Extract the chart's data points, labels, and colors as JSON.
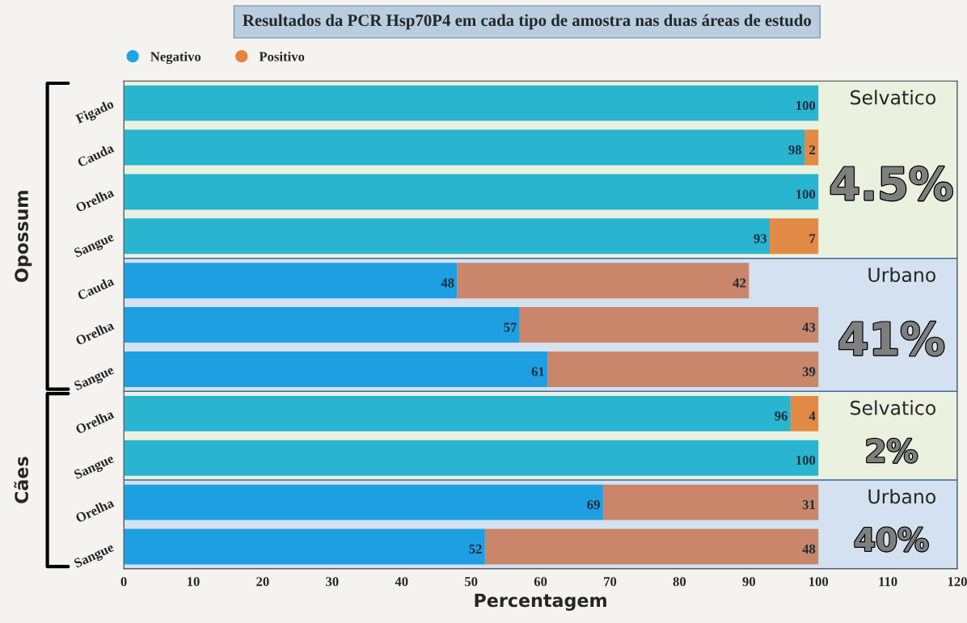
{
  "chart_data": {
    "type": "bar",
    "orientation": "horizontal",
    "stacked": true,
    "title": "Resultados da PCR Hsp70P4 em cada tipo de amostra nas duas áreas de estudo",
    "xlabel": "Percentagem",
    "categories": [
      "Figado",
      "Cauda",
      "Orelha",
      "Sangue",
      "Cauda",
      "Orelha",
      "Sangue",
      "Orelha",
      "Sangue",
      "Orelha",
      "Sangue"
    ],
    "series": [
      {
        "name": "Negativo",
        "color": "#1ea5e3",
        "colors": [
          "#29b4cf",
          "#29b4cf",
          "#29b4cf",
          "#29b4cf",
          "#1e9fe2",
          "#1e9fe2",
          "#1e9fe2",
          "#29b4cf",
          "#29b4cf",
          "#1e9fe2",
          "#1e9fe2"
        ],
        "values": [
          100,
          98,
          100,
          93,
          48,
          57,
          61,
          96,
          100,
          69,
          52
        ],
        "value_labels": [
          "100",
          "98",
          "100",
          "93",
          "48",
          "57",
          "61",
          "96",
          "100",
          "69",
          "52"
        ]
      },
      {
        "name": "Positivo",
        "color": "#e8823f",
        "colors": [
          "#e28a45",
          "#e28a45",
          "#e28a45",
          "#e28a45",
          "#c9866a",
          "#c9866a",
          "#c9866a",
          "#e28a45",
          "#e28a45",
          "#c9866a",
          "#c9866a"
        ],
        "values": [
          0,
          2,
          0,
          7,
          42,
          43,
          39,
          4,
          0,
          31,
          48
        ],
        "value_labels": [
          null,
          "2",
          null,
          "7",
          "42",
          "43",
          "39",
          "4",
          null,
          "31",
          "48"
        ]
      }
    ],
    "xlim": [
      0,
      120
    ],
    "xticks": [
      0,
      10,
      20,
      30,
      40,
      50,
      60,
      70,
      80,
      90,
      100,
      110,
      120
    ],
    "annotations": [
      "Selvatico",
      "4.5%",
      "Urbano",
      "41%",
      "Selvatico",
      "2%",
      "Urbano",
      "40%",
      "Opossum",
      "Cães"
    ],
    "legend": "top left",
    "grid": false
  }
}
